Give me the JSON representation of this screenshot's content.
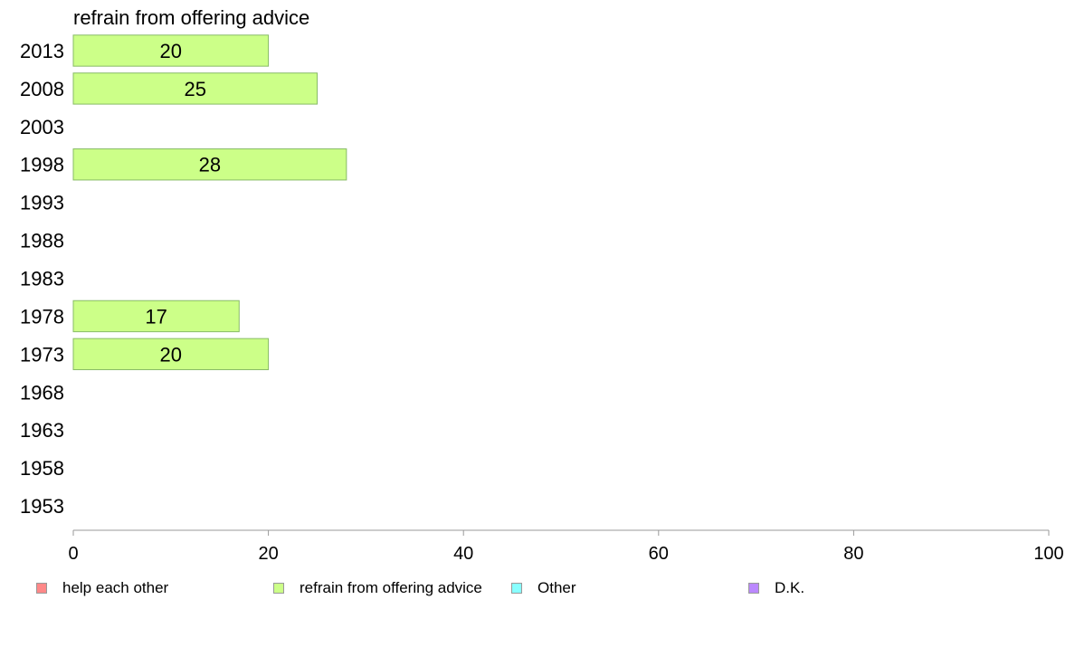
{
  "chart_data": {
    "type": "bar",
    "orientation": "horizontal",
    "title": "refrain from offering advice",
    "categories": [
      "2013",
      "2008",
      "2003",
      "1998",
      "1993",
      "1988",
      "1983",
      "1978",
      "1973",
      "1968",
      "1963",
      "1958",
      "1953"
    ],
    "series": [
      {
        "name": "refrain from offering advice",
        "color": "#ccff88",
        "values": [
          20,
          25,
          null,
          28,
          null,
          null,
          null,
          17,
          20,
          null,
          null,
          null,
          null
        ]
      }
    ],
    "xlim": [
      0,
      100
    ],
    "xticks": [
      "0",
      "20",
      "40",
      "60",
      "80",
      "100"
    ],
    "grid": false,
    "legend_position": "bottom"
  },
  "legend": [
    {
      "label": "help each other",
      "color": "#ff8888"
    },
    {
      "label": "refrain from offering advice",
      "color": "#ccff88"
    },
    {
      "label": "Other",
      "color": "#88ffff"
    },
    {
      "label": "D.K.",
      "color": "#bb88ff"
    }
  ]
}
